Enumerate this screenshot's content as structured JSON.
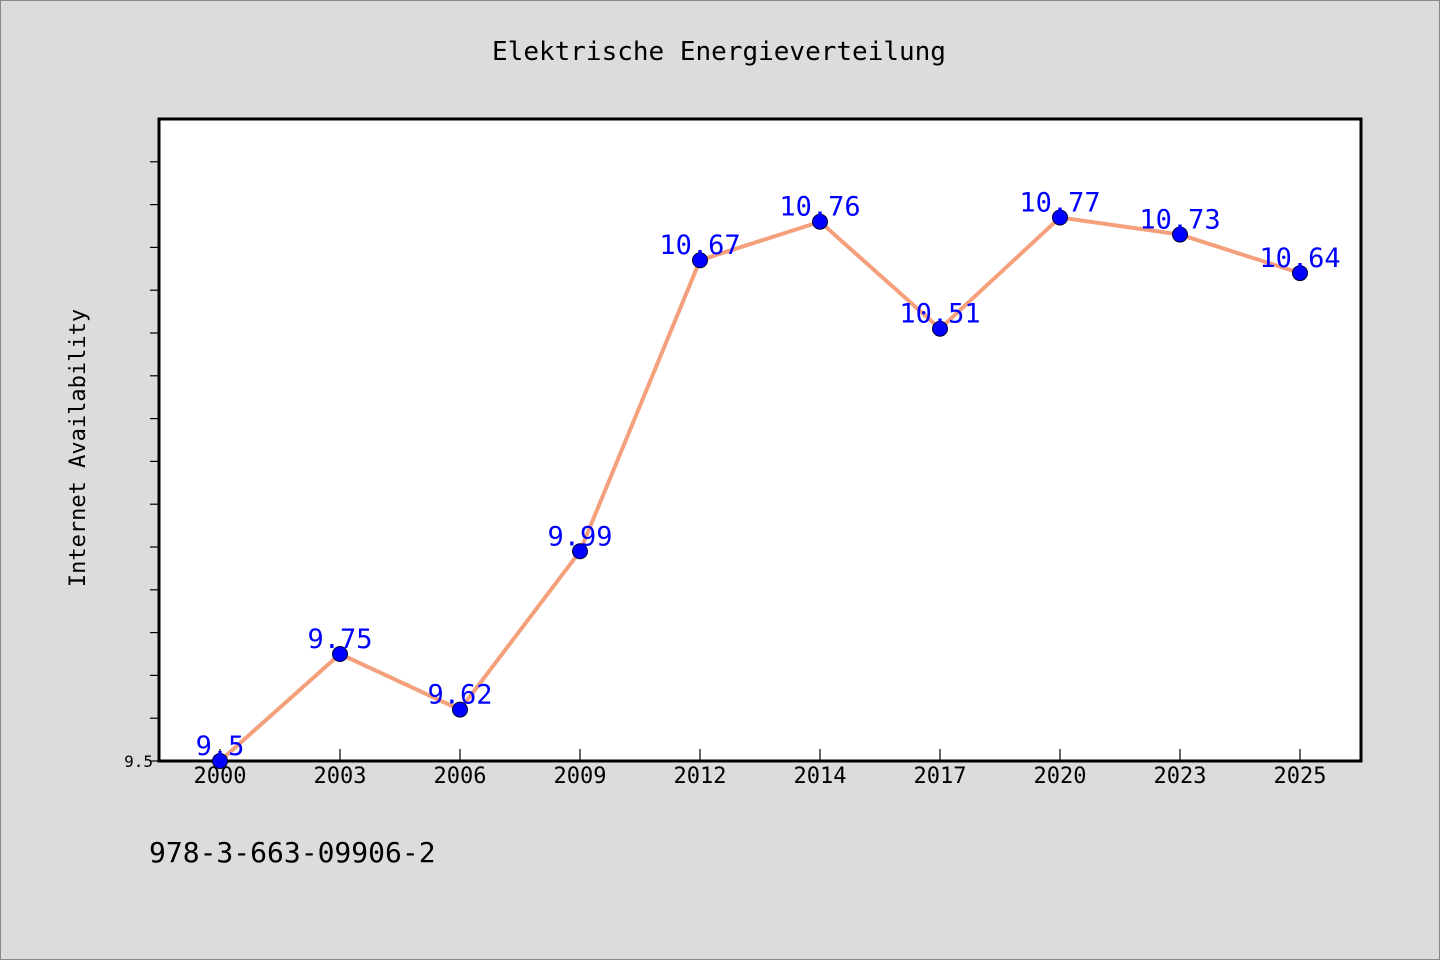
{
  "chart_data": {
    "type": "line",
    "title": "Elektrische Energieverteilung",
    "xlabel": "",
    "ylabel": "Internet Availability",
    "categories": [
      "2000",
      "2003",
      "2006",
      "2009",
      "2012",
      "2014",
      "2017",
      "2020",
      "2023",
      "2025"
    ],
    "series": [
      {
        "values": [
          9.5,
          9.75,
          9.62,
          9.99,
          10.67,
          10.76,
          10.51,
          10.77,
          10.73,
          10.64
        ],
        "labels": [
          "9.5",
          "9.75",
          "9.62",
          "9.99",
          "10.67",
          "10.76",
          "10.51",
          "10.77",
          "10.73",
          "10.64"
        ],
        "line_color": "#f4a07c",
        "marker_color": "#0000ff"
      }
    ],
    "ylim": [
      9.5,
      11.0
    ],
    "yticks_labeled": [
      "9.5"
    ],
    "grid": false,
    "legend": "none"
  },
  "footnote": "978-3-663-09906-2",
  "colors": {
    "background": "#dcdcdc",
    "plot_background": "#ffffff",
    "line": "#f4a07c",
    "marker": "#0000ff",
    "data_label": "#0000ff"
  }
}
